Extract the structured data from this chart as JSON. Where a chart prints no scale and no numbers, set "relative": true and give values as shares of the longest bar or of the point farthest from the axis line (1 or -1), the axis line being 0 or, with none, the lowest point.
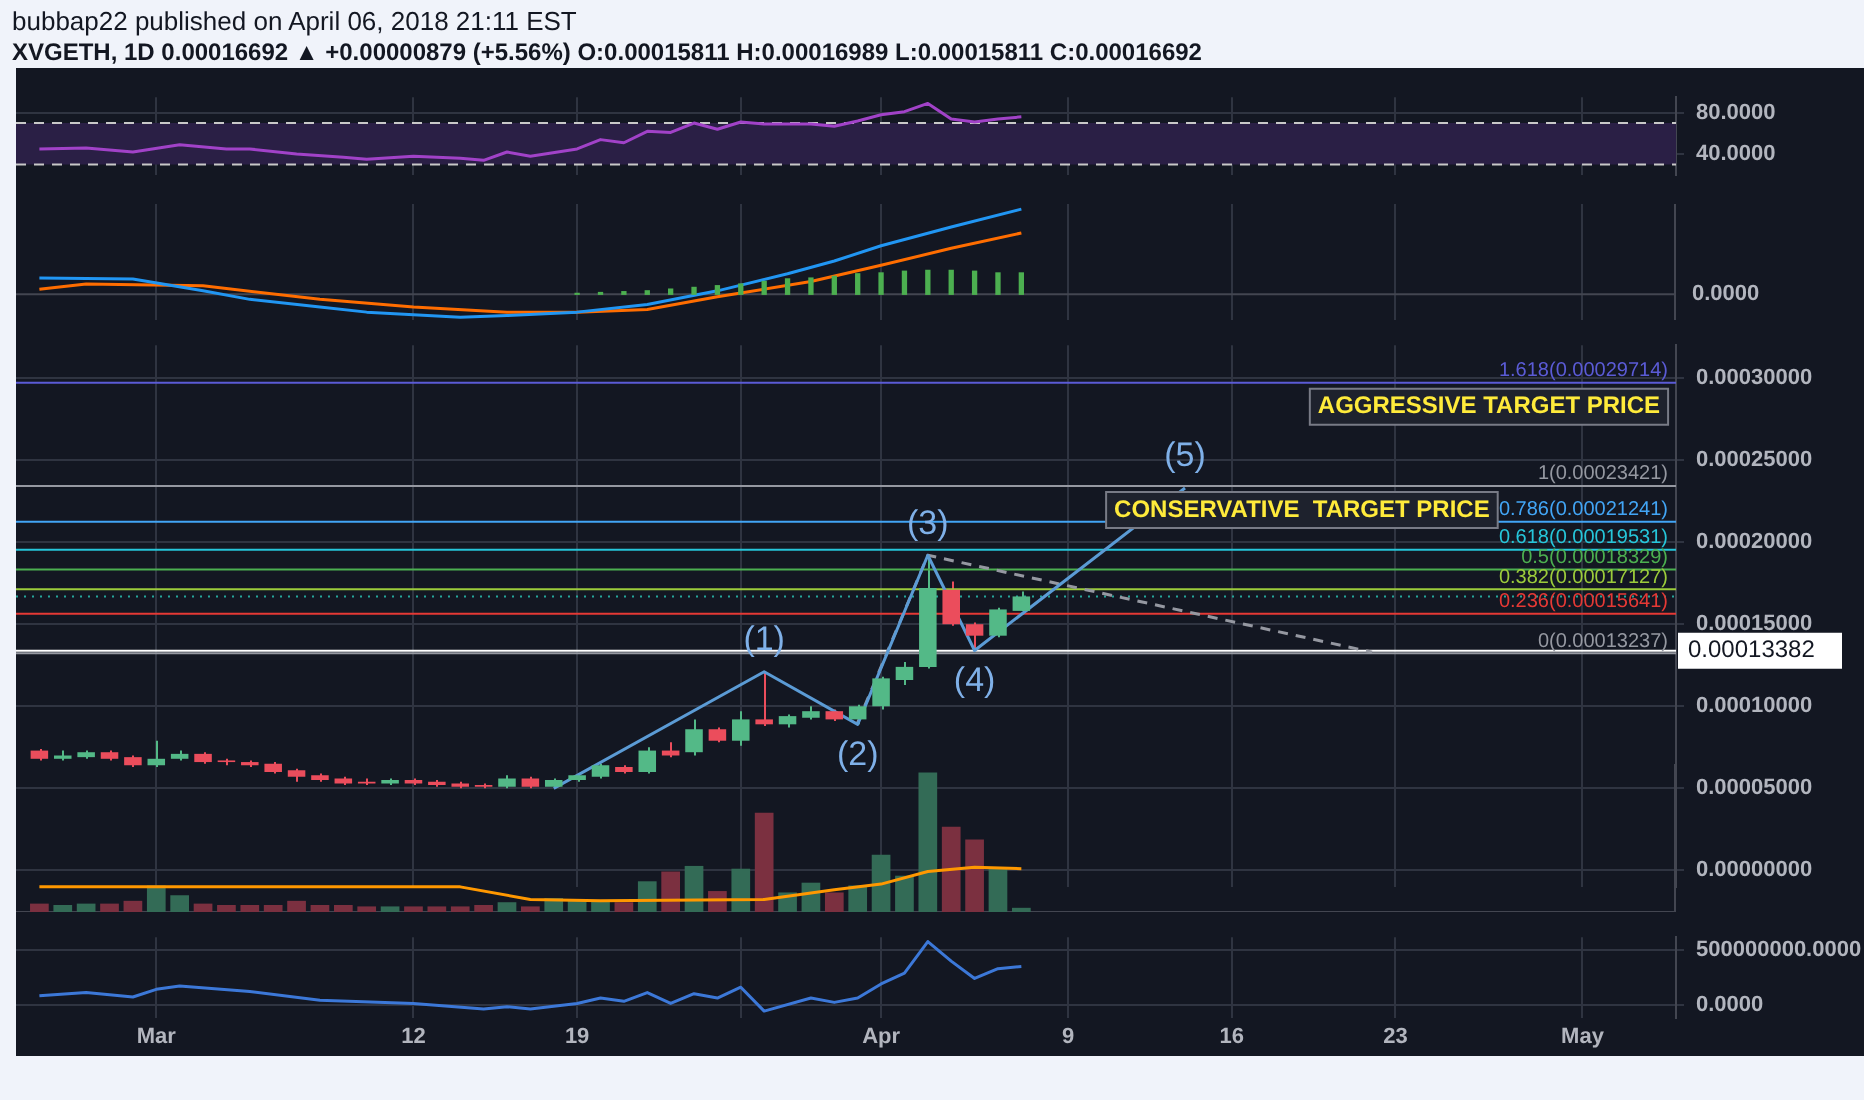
{
  "chart_data": [
    {
      "type": "line",
      "title": "bubbap22 published on April 06, 2018 21:11 EST",
      "subtitle": "XVGETH, 1D 0.00016692 ▲ +0.00000879 (+5.56%) O:0.00015811 H:0.00016989 L:0.00015811 C:0.00016692",
      "xlim": [
        "--02-23",
        "--05-05"
      ],
      "xticks": [
        {
          "value": "--03-01",
          "label": null
        },
        {
          "value": "--03-12",
          "label": null
        },
        {
          "value": "--03-19",
          "label": null
        },
        {
          "value": "--03-26",
          "label": null
        },
        {
          "value": "--04-01",
          "label": null
        },
        {
          "value": "--04-09",
          "label": null
        },
        {
          "value": "--04-16",
          "label": null
        },
        {
          "value": "--04-23",
          "label": null
        },
        {
          "value": "--05-01",
          "label": null
        }
      ],
      "ylim": [
        20,
        95
      ],
      "yticks": [
        {
          "value": 40,
          "label": "40.0000"
        },
        {
          "value": 80,
          "label": "80.0000"
        }
      ],
      "grid": true,
      "tick_labels": "y",
      "bands": [
        {
          "axis": "y",
          "from": 30,
          "to": 70,
          "color": "#2a1f45"
        }
      ],
      "ref_lines": [
        {
          "axis": "y",
          "value": 70,
          "color": "#c8c8c8",
          "line_style": "dashed"
        },
        {
          "axis": "y",
          "value": 30,
          "color": "#c8c8c8",
          "line_style": "dashed"
        }
      ],
      "series": [
        {
          "color": "#a142c8",
          "x": [
            "--02-24",
            "--02-26",
            "--02-28",
            "--03-02",
            "--03-04",
            "--03-05",
            "--03-07",
            "--03-09",
            "--03-10",
            "--03-12",
            "--03-14",
            "--03-15",
            "--03-16",
            "--03-17",
            "--03-19",
            "--03-20",
            "--03-21",
            "--03-22",
            "--03-23",
            "--03-24",
            "--03-25",
            "--03-26",
            "--03-27",
            "--03-29",
            "--03-30",
            "--03-31",
            "--04-01",
            "--04-02",
            "--04-03",
            "--04-04",
            "--04-05",
            "--04-06",
            "--04-07"
          ],
          "values": [
            45,
            46,
            42,
            49,
            45,
            45,
            40,
            37,
            35,
            38,
            36,
            34,
            42,
            38,
            45,
            54,
            51,
            62,
            61,
            70,
            64,
            71,
            69,
            69,
            67,
            72,
            78,
            81,
            89,
            74,
            71,
            74,
            76
          ]
        }
      ]
    },
    {
      "type": "line",
      "relative": true,
      "xlim": [
        "--02-23",
        "--05-05"
      ],
      "xticks": [
        {
          "value": "--03-01",
          "label": null
        },
        {
          "value": "--03-12",
          "label": null
        },
        {
          "value": "--03-19",
          "label": null
        },
        {
          "value": "--03-26",
          "label": null
        },
        {
          "value": "--04-01",
          "label": null
        },
        {
          "value": "--04-09",
          "label": null
        },
        {
          "value": "--04-16",
          "label": null
        },
        {
          "value": "--04-23",
          "label": null
        },
        {
          "value": "--05-01",
          "label": null
        }
      ],
      "grid": "x",
      "tick_labels": false,
      "annotations": [
        "0.0000"
      ],
      "series": [
        {
          "type": "bar",
          "color": "#4caf50",
          "x": [
            "--03-19",
            "--03-20",
            "--03-21",
            "--03-22",
            "--03-23",
            "--03-24",
            "--03-25",
            "--03-26",
            "--03-27",
            "--03-28",
            "--03-29",
            "--03-30",
            "--03-31",
            "--04-01",
            "--04-02",
            "--04-03",
            "--04-04",
            "--04-05",
            "--04-06",
            "--04-07"
          ],
          "values": [
            0.01,
            0.02,
            0.03,
            0.04,
            0.06,
            0.08,
            0.1,
            0.12,
            0.15,
            0.18,
            0.19,
            0.21,
            0.24,
            0.25,
            0.27,
            0.28,
            0.28,
            0.27,
            0.25,
            0.25
          ]
        },
        {
          "type": "line",
          "color": "#2196f3",
          "x": [
            "--02-24",
            "--02-28",
            "--03-03",
            "--03-05",
            "--03-08",
            "--03-10",
            "--03-14",
            "--03-16",
            "--03-19",
            "--03-22",
            "--03-25",
            "--03-28",
            "--03-30",
            "--04-01",
            "--04-04",
            "--04-07"
          ],
          "values": [
            0.19,
            0.18,
            0.04,
            -0.06,
            -0.15,
            -0.21,
            -0.27,
            -0.25,
            -0.21,
            -0.12,
            0.04,
            0.24,
            0.39,
            0.57,
            0.79,
            1
          ]
        },
        {
          "type": "line",
          "color": "#ff6d00",
          "x": [
            "--02-24",
            "--02-26",
            "--03-03",
            "--03-08",
            "--03-12",
            "--03-16",
            "--03-19",
            "--03-22",
            "--03-25",
            "--03-29",
            "--04-01",
            "--04-04",
            "--04-07"
          ],
          "values": [
            0.06,
            0.12,
            0.1,
            -0.06,
            -0.15,
            -0.21,
            -0.21,
            -0.18,
            -0.03,
            0.15,
            0.34,
            0.54,
            0.72
          ]
        }
      ]
    },
    {
      "type": "candlestick",
      "xlim": [
        "--02-23",
        "--05-05"
      ],
      "xticks": [
        {
          "value": "--03-01",
          "label": null
        },
        {
          "value": "--03-12",
          "label": null
        },
        {
          "value": "--03-19",
          "label": null
        },
        {
          "value": "--03-26",
          "label": null
        },
        {
          "value": "--04-01",
          "label": null
        },
        {
          "value": "--04-09",
          "label": null
        },
        {
          "value": "--04-16",
          "label": null
        },
        {
          "value": "--04-23",
          "label": null
        },
        {
          "value": "--05-01",
          "label": null
        }
      ],
      "ylim": [
        -1e-05,
        0.00032
      ],
      "yticks": [
        {
          "value": 0,
          "label": "0.00000000"
        },
        {
          "value": 5e-05,
          "label": "0.00005000"
        },
        {
          "value": 0.0001,
          "label": "0.00010000"
        },
        {
          "value": 0.00015,
          "label": "0.00015000"
        },
        {
          "value": 0.0002,
          "label": "0.00020000"
        },
        {
          "value": 0.00025,
          "label": "0.00025000"
        },
        {
          "value": 0.0003,
          "label": "0.00030000"
        }
      ],
      "grid": true,
      "tick_labels": "y",
      "x": [
        "--02-24",
        "--02-25",
        "--02-26",
        "--02-27",
        "--02-28",
        "--03-01",
        "--03-02",
        "--03-03",
        "--03-04",
        "--03-05",
        "--03-06",
        "--03-07",
        "--03-08",
        "--03-09",
        "--03-10",
        "--03-11",
        "--03-12",
        "--03-13",
        "--03-14",
        "--03-15",
        "--03-16",
        "--03-17",
        "--03-18",
        "--03-19",
        "--03-20",
        "--03-21",
        "--03-22",
        "--03-23",
        "--03-24",
        "--03-25",
        "--03-26",
        "--03-27",
        "--03-28",
        "--03-29",
        "--03-30",
        "--03-31",
        "--04-01",
        "--04-02",
        "--04-03",
        "--04-04",
        "--04-05",
        "--04-06",
        "--04-07"
      ],
      "ohlc": [
        [
          7.3e-05,
          7.4e-05,
          6.7e-05,
          6.8e-05
        ],
        [
          6.8e-05,
          7.3e-05,
          6.7e-05,
          7e-05
        ],
        [
          6.9e-05,
          7.3e-05,
          6.8e-05,
          7.2e-05
        ],
        [
          7.2e-05,
          7.3e-05,
          6.7e-05,
          6.8e-05
        ],
        [
          6.9e-05,
          7e-05,
          6.3e-05,
          6.4e-05
        ],
        [
          6.4e-05,
          7.9e-05,
          6.3e-05,
          6.8e-05
        ],
        [
          6.8e-05,
          7.3e-05,
          6.7e-05,
          7.1e-05
        ],
        [
          7.1e-05,
          7.2e-05,
          6.5e-05,
          6.6e-05
        ],
        [
          6.7e-05,
          6.8e-05,
          6.4e-05,
          6.6e-05
        ],
        [
          6.6e-05,
          6.7e-05,
          6.3e-05,
          6.4e-05
        ],
        [
          6.5e-05,
          6.6e-05,
          5.9e-05,
          6e-05
        ],
        [
          6.1e-05,
          6.2e-05,
          5.4e-05,
          5.7e-05
        ],
        [
          5.8e-05,
          5.9e-05,
          5.4e-05,
          5.5e-05
        ],
        [
          5.6e-05,
          5.7e-05,
          5.2e-05,
          5.3e-05
        ],
        [
          5.4e-05,
          5.6e-05,
          5.2e-05,
          5.3e-05
        ],
        [
          5.3e-05,
          5.6e-05,
          5.2e-05,
          5.5e-05
        ],
        [
          5.5e-05,
          5.6e-05,
          5.2e-05,
          5.3e-05
        ],
        [
          5.4e-05,
          5.5e-05,
          5.1e-05,
          5.2e-05
        ],
        [
          5.3e-05,
          5.4e-05,
          5e-05,
          5.1e-05
        ],
        [
          5.2e-05,
          5.3e-05,
          5e-05,
          5.1e-05
        ],
        [
          5.1e-05,
          5.8e-05,
          5e-05,
          5.6e-05
        ],
        [
          5.6e-05,
          5.7e-05,
          5e-05,
          5.1e-05
        ],
        [
          5.1e-05,
          5.6e-05,
          5e-05,
          5.5e-05
        ],
        [
          5.5e-05,
          5.9e-05,
          5.4e-05,
          5.8e-05
        ],
        [
          5.7e-05,
          6.5e-05,
          5.6e-05,
          6.4e-05
        ],
        [
          6.3e-05,
          6.4e-05,
          5.9e-05,
          6e-05
        ],
        [
          6e-05,
          7.5e-05,
          5.9e-05,
          7.3e-05
        ],
        [
          7.3e-05,
          7.8e-05,
          6.9e-05,
          7e-05
        ],
        [
          7.2e-05,
          9.2e-05,
          7e-05,
          8.6e-05
        ],
        [
          8.6e-05,
          8.7e-05,
          7.8e-05,
          7.9e-05
        ],
        [
          7.9e-05,
          9.7e-05,
          7.6e-05,
          9.2e-05
        ],
        [
          9.2e-05,
          0.000121,
          8.8e-05,
          8.9e-05
        ],
        [
          8.9e-05,
          9.5e-05,
          8.7e-05,
          9.4e-05
        ],
        [
          9.3e-05,
          0.0001,
          9.2e-05,
          9.7e-05
        ],
        [
          9.7e-05,
          9.8e-05,
          9.1e-05,
          9.2e-05
        ],
        [
          9.2e-05,
          0.000101,
          8.9e-05,
          0.0001
        ],
        [
          0.0001,
          0.000118,
          9.8e-05,
          0.000117
        ],
        [
          0.000116,
          0.000127,
          0.000113,
          0.000124
        ],
        [
          0.000124,
          0.000192,
          0.000123,
          0.000172
        ],
        [
          0.000171,
          0.000176,
          0.000149,
          0.00015
        ],
        [
          0.00015,
          0.000151,
          0.000134,
          0.000143
        ],
        [
          0.000143,
          0.00016,
          0.000142,
          0.000159
        ],
        [
          0.00015811,
          0.00016989,
          0.00015811,
          0.00016692
        ]
      ],
      "colors": [
        "#eb4d5c",
        "#53b987",
        "#53b987",
        "#eb4d5c",
        "#eb4d5c",
        "#53b987",
        "#53b987",
        "#eb4d5c",
        "#eb4d5c",
        "#eb4d5c",
        "#eb4d5c",
        "#eb4d5c",
        "#eb4d5c",
        "#eb4d5c",
        "#eb4d5c",
        "#53b987",
        "#eb4d5c",
        "#eb4d5c",
        "#eb4d5c",
        "#eb4d5c",
        "#53b987",
        "#eb4d5c",
        "#53b987",
        "#53b987",
        "#53b987",
        "#eb4d5c",
        "#53b987",
        "#eb4d5c",
        "#53b987",
        "#eb4d5c",
        "#53b987",
        "#eb4d5c",
        "#53b987",
        "#53b987",
        "#eb4d5c",
        "#53b987",
        "#53b987",
        "#53b987",
        "#53b987",
        "#eb4d5c",
        "#eb4d5c",
        "#53b987",
        "#53b987"
      ],
      "series": [
        {
          "type": "line",
          "color": "#5b9bd5",
          "x": [
            "--03-18",
            "--03-27",
            "--03-31",
            "--04-03",
            "--04-05",
            "--04-14"
          ],
          "values": [
            5e-05,
            0.000121,
            8.9e-05,
            0.000192,
            0.000134,
            0.000233
          ]
        },
        {
          "type": "line",
          "color": "#9598a1",
          "line_style": "dashed",
          "x": [
            "--03-31",
            "--04-03",
            "--04-22"
          ],
          "values": [
            9e-05,
            0.000192,
            0.000133
          ]
        }
      ],
      "ref_lines": [
        {
          "axis": "y",
          "value": 0.00029714,
          "label": "1.618(0.00029714)",
          "color": "#5b5bd6"
        },
        {
          "axis": "y",
          "value": 0.00023421,
          "label": "1(0.00023421)",
          "color": "#9598a1"
        },
        {
          "axis": "y",
          "value": 0.00021241,
          "label": "0.786(0.00021241)",
          "color": "#42a5f5"
        },
        {
          "axis": "y",
          "value": 0.00019531,
          "label": "0.618(0.00019531)",
          "color": "#26c6da"
        },
        {
          "axis": "y",
          "value": 0.00018329,
          "label": "0.5(0.00018329)",
          "color": "#4caf50"
        },
        {
          "axis": "y",
          "value": 0.00017127,
          "label": "0.382(0.00017127)",
          "color": "#9ccc3b"
        },
        {
          "axis": "y",
          "value": 0.00015641,
          "label": "0.236(0.00015641)",
          "color": "#e53935"
        },
        {
          "axis": "y",
          "value": 0.00013237,
          "label": "0(0.00013237)",
          "color": "#9598a1"
        },
        {
          "axis": "y",
          "value": 0.00013382,
          "label": "0.00013382",
          "color": "#ffffff",
          "line_style": "solid"
        },
        {
          "axis": "y",
          "value": 0.00016692,
          "color": "#26a69a",
          "line_style": "dotted"
        }
      ],
      "annotations": [
        {
          "text": "(1)",
          "x": "--03-27",
          "y": 0.000121
        },
        {
          "text": "(2)",
          "x": "--03-31",
          "y": 8.9e-05
        },
        {
          "text": "(3)",
          "x": "--04-03",
          "y": 0.000192
        },
        {
          "text": "(4)",
          "x": "--04-05",
          "y": 0.000134
        },
        {
          "text": "(5)",
          "x": "--04-14",
          "y": 0.000233
        },
        {
          "text": "CONSERVATIVE  TARGET PRICE",
          "x": "--04-19",
          "y": 0.00023421
        },
        {
          "text": "AGGRESSIVE TARGET PRICE",
          "x": "--04-27",
          "y": 0.00029714
        }
      ]
    },
    {
      "type": "bar",
      "relative": true,
      "xlim": [
        "--02-23",
        "--05-05"
      ],
      "tick_labels": false,
      "series": [
        {
          "type": "bar",
          "x": [
            "--02-24",
            "--02-25",
            "--02-26",
            "--02-27",
            "--02-28",
            "--03-01",
            "--03-02",
            "--03-03",
            "--03-04",
            "--03-05",
            "--03-06",
            "--03-07",
            "--03-08",
            "--03-09",
            "--03-10",
            "--03-11",
            "--03-12",
            "--03-13",
            "--03-14",
            "--03-15",
            "--03-16",
            "--03-17",
            "--03-18",
            "--03-19",
            "--03-20",
            "--03-21",
            "--03-22",
            "--03-23",
            "--03-24",
            "--03-25",
            "--03-26",
            "--03-27",
            "--03-28",
            "--03-29",
            "--03-30",
            "--03-31",
            "--04-01",
            "--04-02",
            "--04-03",
            "--04-04",
            "--04-05",
            "--04-06",
            "--04-07"
          ],
          "values": [
            0.06,
            0.05,
            0.06,
            0.06,
            0.08,
            0.19,
            0.12,
            0.06,
            0.05,
            0.05,
            0.05,
            0.08,
            0.05,
            0.05,
            0.04,
            0.04,
            0.04,
            0.04,
            0.04,
            0.05,
            0.07,
            0.04,
            0.1,
            0.08,
            0.08,
            0.07,
            0.22,
            0.29,
            0.33,
            0.15,
            0.31,
            0.71,
            0.14,
            0.21,
            0.14,
            0.19,
            0.41,
            0.26,
            1,
            0.61,
            0.52,
            0.31,
            0.03
          ],
          "colors": [
            "#7b3040",
            "#336b56",
            "#336b56",
            "#7b3040",
            "#7b3040",
            "#336b56",
            "#336b56",
            "#7b3040",
            "#7b3040",
            "#7b3040",
            "#7b3040",
            "#7b3040",
            "#7b3040",
            "#7b3040",
            "#7b3040",
            "#336b56",
            "#7b3040",
            "#7b3040",
            "#7b3040",
            "#7b3040",
            "#336b56",
            "#7b3040",
            "#336b56",
            "#336b56",
            "#336b56",
            "#7b3040",
            "#336b56",
            "#7b3040",
            "#336b56",
            "#7b3040",
            "#336b56",
            "#7b3040",
            "#336b56",
            "#336b56",
            "#7b3040",
            "#336b56",
            "#336b56",
            "#336b56",
            "#336b56",
            "#7b3040",
            "#7b3040",
            "#336b56",
            "#336b56"
          ]
        },
        {
          "type": "line",
          "color": "#ff9800",
          "x": [
            "--02-24",
            "--03-14",
            "--03-17",
            "--03-20",
            "--03-27",
            "--03-30",
            "--04-01",
            "--04-03",
            "--04-05",
            "--04-07"
          ],
          "values": [
            0.18,
            0.18,
            0.09,
            0.08,
            0.09,
            0.16,
            0.2,
            0.29,
            0.32,
            0.31
          ]
        }
      ]
    },
    {
      "type": "line",
      "xlim": [
        "--02-23",
        "--05-05"
      ],
      "xticks": [
        {
          "value": "--03-01",
          "label": "Mar"
        },
        {
          "value": "--03-12",
          "label": "12"
        },
        {
          "value": "--03-19",
          "label": "19"
        },
        {
          "value": "--03-26",
          "label": null
        },
        {
          "value": "--04-01",
          "label": "Apr"
        },
        {
          "value": "--04-09",
          "label": "9"
        },
        {
          "value": "--04-16",
          "label": "16"
        },
        {
          "value": "--04-23",
          "label": "23"
        },
        {
          "value": "--05-01",
          "label": "May"
        }
      ],
      "ylim": [
        -120000000,
        620000000
      ],
      "yticks": [
        {
          "value": 0,
          "label": "0.0000"
        },
        {
          "value": 500000000,
          "label": "500000000.0000"
        }
      ],
      "grid": true,
      "series": [
        {
          "color": "#3c78d8",
          "x": [
            "--02-24",
            "--02-26",
            "--02-28",
            "--03-01",
            "--03-02",
            "--03-05",
            "--03-08",
            "--03-12",
            "--03-15",
            "--03-16",
            "--03-17",
            "--03-19",
            "--03-20",
            "--03-21",
            "--03-22",
            "--03-23",
            "--03-24",
            "--03-25",
            "--03-26",
            "--03-27",
            "--03-29",
            "--03-30",
            "--03-31",
            "--04-01",
            "--04-02",
            "--04-03",
            "--04-04",
            "--04-05",
            "--04-06",
            "--04-07"
          ],
          "values": [
            80000000,
            110000000,
            70000000,
            140000000,
            170000000,
            120000000,
            40000000,
            10000000,
            -40000000,
            -20000000,
            -40000000,
            10000000,
            60000000,
            30000000,
            110000000,
            10000000,
            100000000,
            60000000,
            160000000,
            -60000000,
            60000000,
            20000000,
            60000000,
            190000000,
            290000000,
            580000000,
            400000000,
            240000000,
            330000000,
            350000000
          ]
        }
      ]
    }
  ]
}
